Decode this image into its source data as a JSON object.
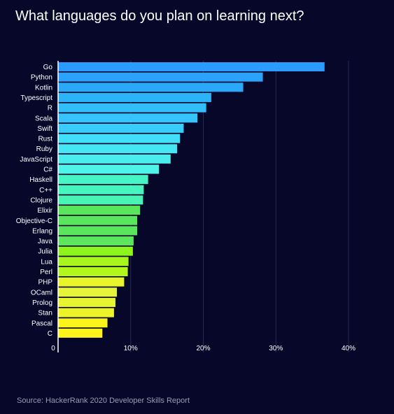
{
  "chart_data": {
    "type": "bar",
    "orientation": "horizontal",
    "title": "What languages do you plan on learning next?",
    "categories": [
      "Go",
      "Python",
      "Kotlin",
      "Typescript",
      "R",
      "Scala",
      "Swift",
      "Rust",
      "Ruby",
      "JavaScript",
      "C#",
      "Haskell",
      "C++",
      "Clojure",
      "Elixir",
      "Objective-C",
      "Erlang",
      "Java",
      "Julia",
      "Lua",
      "Perl",
      "PHP",
      "OCaml",
      "Prolog",
      "Stan",
      "Pascal",
      "C"
    ],
    "values": [
      36.7,
      28.2,
      25.5,
      21.1,
      20.4,
      19.2,
      17.3,
      16.8,
      16.4,
      15.5,
      13.9,
      12.4,
      11.8,
      11.7,
      11.3,
      10.9,
      10.9,
      10.4,
      10.3,
      9.7,
      9.6,
      9.1,
      8.1,
      7.9,
      7.7,
      6.8,
      6.1
    ],
    "colors": [
      "#2b9bff",
      "#2ba3fd",
      "#2ba9f9",
      "#2cb4f8",
      "#30bffa",
      "#35c4fb",
      "#38cdfa",
      "#40e0fa",
      "#46e6f4",
      "#4aedee",
      "#4ef4ea",
      "#45f5c6",
      "#45f5bd",
      "#47f4b3",
      "#5ae65c",
      "#5ae65c",
      "#5ae65c",
      "#5ce65e",
      "#8ef51c",
      "#a8f71c",
      "#b2f71c",
      "#e8f52b",
      "#e7f53a",
      "#e6f52f",
      "#eef42a",
      "#fbf51c",
      "#fff51c"
    ],
    "xticks": [
      "0",
      "10%",
      "20%",
      "30%",
      "40%"
    ],
    "xlim": [
      0,
      40
    ],
    "xlabel": "",
    "ylabel": "",
    "grid": true,
    "source": "Source: HackerRank 2020 Developer Skills Report"
  }
}
